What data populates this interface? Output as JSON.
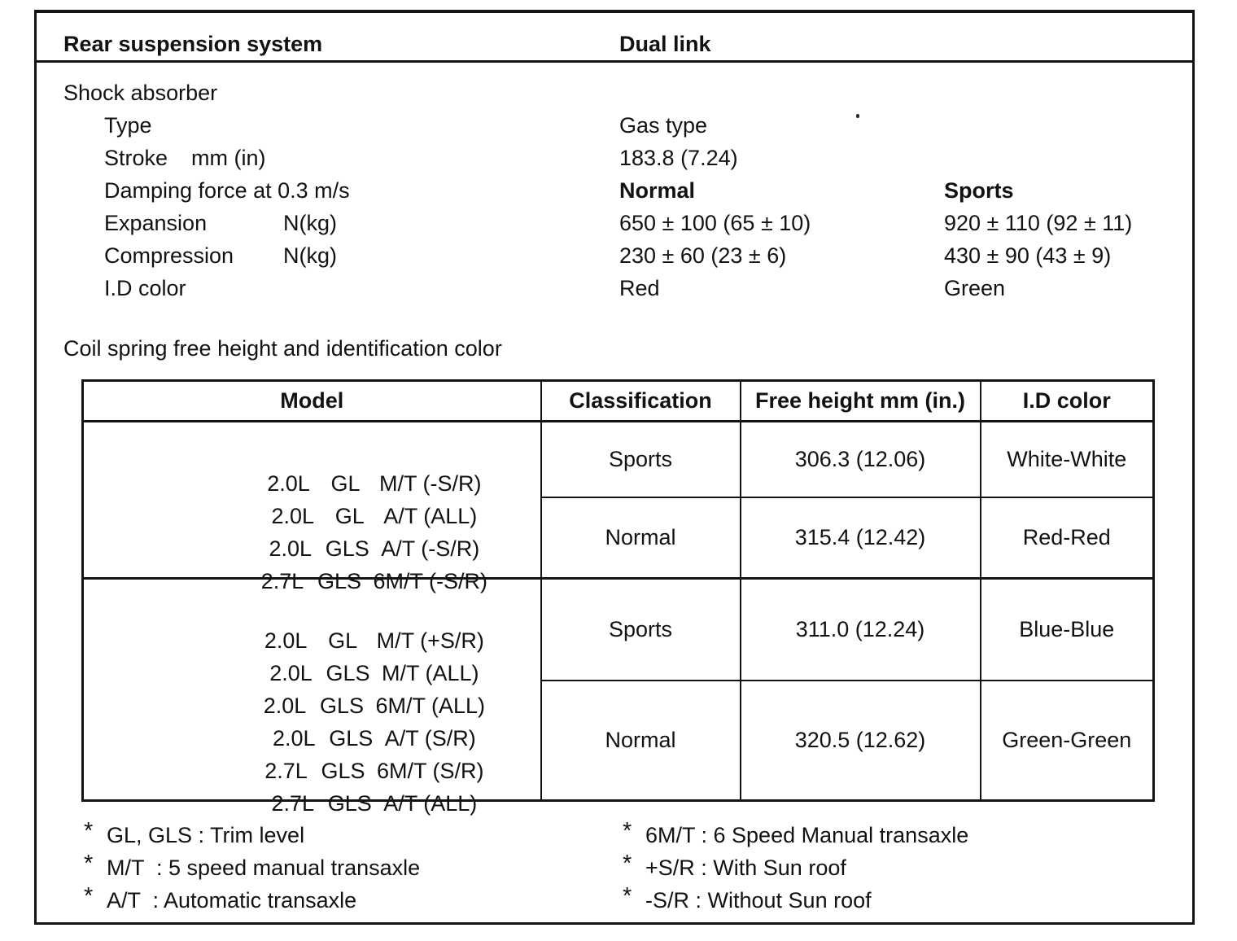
{
  "colors": {
    "ink": "#141414",
    "paper": "#ffffff"
  },
  "header": {
    "system_label": "Rear suspension system",
    "system_value": "Dual link"
  },
  "shock_absorber": {
    "section_title": "Shock absorber",
    "specs": [
      {
        "label": "Type",
        "unit": "",
        "normal": "Gas type",
        "sports": ""
      },
      {
        "label": "Stroke",
        "unit": "mm (in)",
        "normal": "183.8 (7.24)",
        "sports": ""
      },
      {
        "label": "Damping force at 0.3 m/s",
        "unit": "",
        "normal": "Normal",
        "sports": "Sports"
      },
      {
        "label": "Expansion",
        "unit": "N(kg)",
        "normal": "650 ± 100 (65 ± 10)",
        "sports": "920 ± 110 (92 ± 11)"
      },
      {
        "label": "Compression",
        "unit": "N(kg)",
        "normal": "230 ± 60 (23 ± 6)",
        "sports": "430 ± 90 (43 ± 9)"
      },
      {
        "label": "I.D color",
        "unit": "",
        "normal": "Red",
        "sports": "Green"
      }
    ]
  },
  "coil_spring": {
    "section_title": "Coil spring free height and identification color",
    "table": {
      "headers": {
        "model": "Model",
        "classification": "Classification",
        "free_height": "Free height mm (in.)",
        "id_color": "I.D color"
      },
      "groups": [
        {
          "models": [
            {
              "engine": "2.0L",
              "trim": "GL",
              "transaxle": "M/T (-S/R)"
            },
            {
              "engine": "2.0L",
              "trim": "GL",
              "transaxle": "A/T (ALL)"
            },
            {
              "engine": "2.0L",
              "trim": "GLS",
              "transaxle": "A/T (-S/R)"
            },
            {
              "engine": "2.7L",
              "trim": "GLS",
              "transaxle": "6M/T (-S/R)"
            }
          ],
          "rows": [
            {
              "classification": "Sports",
              "free_height": "306.3 (12.06)",
              "id_color": "White-White"
            },
            {
              "classification": "Normal",
              "free_height": "315.4 (12.42)",
              "id_color": "Red-Red"
            }
          ]
        },
        {
          "models": [
            {
              "engine": "2.0L",
              "trim": "GL",
              "transaxle": "M/T (+S/R)"
            },
            {
              "engine": "2.0L",
              "trim": "GLS",
              "transaxle": "M/T (ALL)"
            },
            {
              "engine": "2.0L",
              "trim": "GLS",
              "transaxle": "6M/T (ALL)"
            },
            {
              "engine": "2.0L",
              "trim": "GLS",
              "transaxle": "A/T (S/R)"
            },
            {
              "engine": "2.7L",
              "trim": "GLS",
              "transaxle": "6M/T (S/R)"
            },
            {
              "engine": "2.7L",
              "trim": "GLS",
              "transaxle": "A/T (ALL)"
            }
          ],
          "rows": [
            {
              "classification": "Sports",
              "free_height": "311.0 (12.24)",
              "id_color": "Blue-Blue"
            },
            {
              "classification": "Normal",
              "free_height": "320.5 (12.62)",
              "id_color": "Green-Green"
            }
          ]
        }
      ]
    }
  },
  "footnotes": {
    "marker": "*",
    "left": [
      "GL, GLS : Trim level",
      "M/T  : 5 speed manual transaxle",
      "A/T  : Automatic transaxle"
    ],
    "right": [
      "6M/T : 6 Speed Manual transaxle",
      "+S/R : With Sun roof",
      "-S/R : Without Sun roof"
    ]
  }
}
